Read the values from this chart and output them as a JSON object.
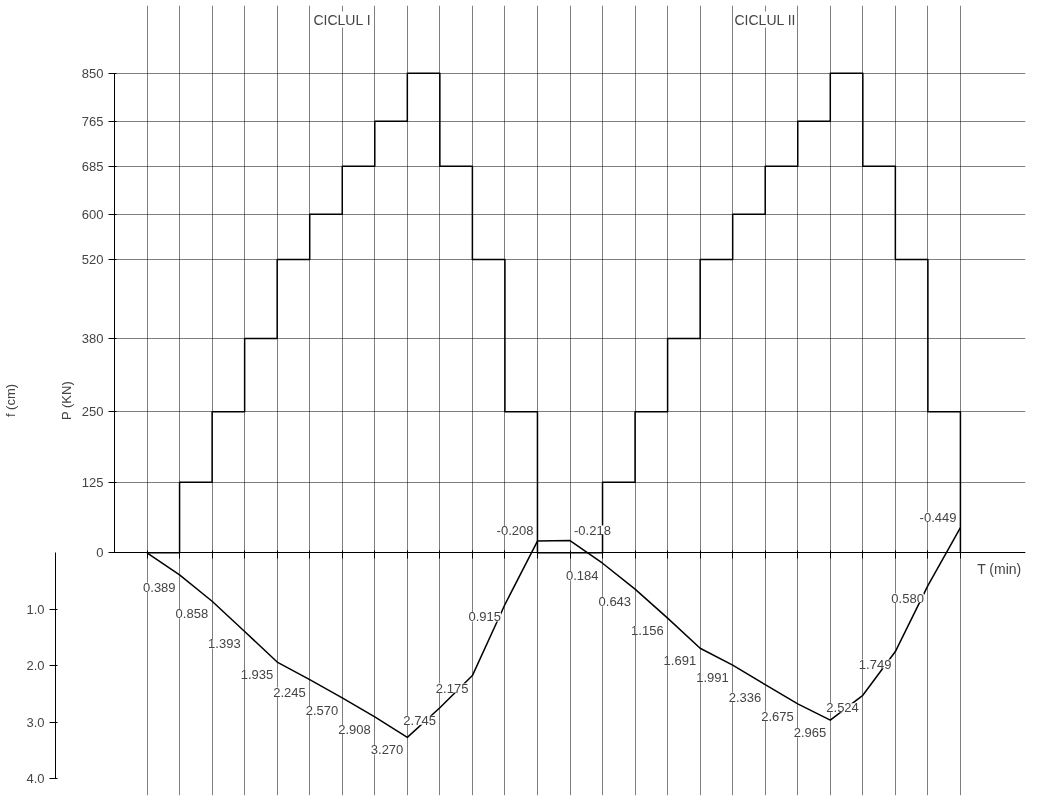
{
  "chart_data": {
    "type": "line",
    "annotations": [
      "CICLUL I",
      "CICLUL II"
    ],
    "xlabel": "T (min)",
    "ylabel": "P (KN)",
    "y2label": "f (cm)",
    "categories": [
      null,
      null,
      null,
      null,
      null,
      null,
      null,
      null,
      null,
      null,
      null,
      null,
      null,
      null,
      null,
      null,
      null,
      null,
      null,
      null,
      null,
      null,
      null,
      null,
      null,
      null
    ],
    "series": [
      {
        "type": "step",
        "color": "#000000",
        "values": [
          0,
          125,
          250,
          380,
          520,
          600,
          685,
          765,
          850,
          685,
          520,
          250,
          0,
          0,
          125,
          250,
          380,
          520,
          600,
          685,
          765,
          850,
          685,
          520,
          250,
          0
        ]
      },
      {
        "axis": "y2",
        "color": "#000000",
        "values": [
          0,
          0.389,
          0.858,
          1.393,
          1.935,
          2.245,
          2.57,
          2.908,
          3.27,
          2.745,
          2.175,
          0.915,
          -0.208,
          -0.218,
          0.184,
          0.643,
          1.156,
          1.691,
          1.991,
          2.336,
          2.675,
          2.965,
          2.524,
          1.749,
          0.58,
          -0.449
        ],
        "value_labels": [
          null,
          "0.389",
          "0.858",
          "1.393",
          "1.935",
          "2.245",
          "2.570",
          "2.908",
          "3.270",
          "2.745",
          "2.175",
          "0.915",
          "-0.208",
          "-0.218",
          "0.184",
          "0.643",
          "1.156",
          "1.691",
          "1.991",
          "2.336",
          "2.675",
          "2.965",
          "2.524",
          "1.749",
          "0.580",
          "-0.449"
        ]
      }
    ],
    "ylim": [
      -430,
      970
    ],
    "yticks": [
      0,
      125,
      250,
      380,
      520,
      600,
      685,
      765,
      850
    ],
    "y2lim": [
      4.3,
      -9.7
    ],
    "y2ticks": [
      {
        "value": 1,
        "label": "1.0"
      },
      {
        "value": 2,
        "label": "2.0"
      },
      {
        "value": 3,
        "label": "3.0"
      },
      {
        "value": 4,
        "label": "4.0"
      }
    ],
    "grid": true,
    "marker": "none",
    "line_style": "solid"
  }
}
